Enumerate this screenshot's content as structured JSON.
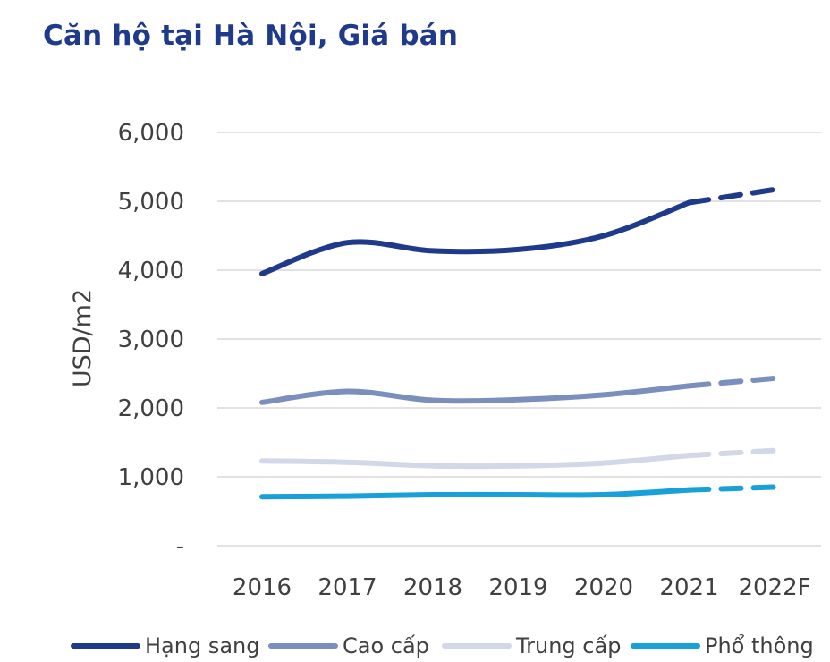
{
  "chart_data": {
    "type": "line",
    "title": "Căn hộ tại Hà Nội, Giá bán",
    "ylabel": "USD/m2",
    "xlabel": "",
    "categories": [
      "2016",
      "2017",
      "2018",
      "2019",
      "2020",
      "2021",
      "2022F"
    ],
    "ylim": [
      0,
      6000
    ],
    "yticks": [
      0,
      1000,
      2000,
      3000,
      4000,
      5000,
      6000
    ],
    "ytick_labels": [
      "-",
      "1,000",
      "2,000",
      "3,000",
      "4,000",
      "5,000",
      "6,000"
    ],
    "grid": true,
    "legend_position": "bottom",
    "forecast_from_index": 5,
    "forecast_style": "dashed",
    "series": [
      {
        "name": "Hạng sang",
        "color": "#1f3a8a",
        "values": [
          3950,
          4400,
          4280,
          4300,
          4500,
          4980,
          5170
        ]
      },
      {
        "name": "Cao cấp",
        "color": "#7b8fbf",
        "values": [
          2080,
          2240,
          2110,
          2120,
          2190,
          2320,
          2430
        ]
      },
      {
        "name": "Trung cấp",
        "color": "#d3d8e8",
        "values": [
          1230,
          1210,
          1160,
          1160,
          1200,
          1310,
          1380
        ]
      },
      {
        "name": "Phổ thông",
        "color": "#1aa0d8",
        "values": [
          710,
          720,
          740,
          740,
          740,
          810,
          850
        ]
      }
    ]
  }
}
